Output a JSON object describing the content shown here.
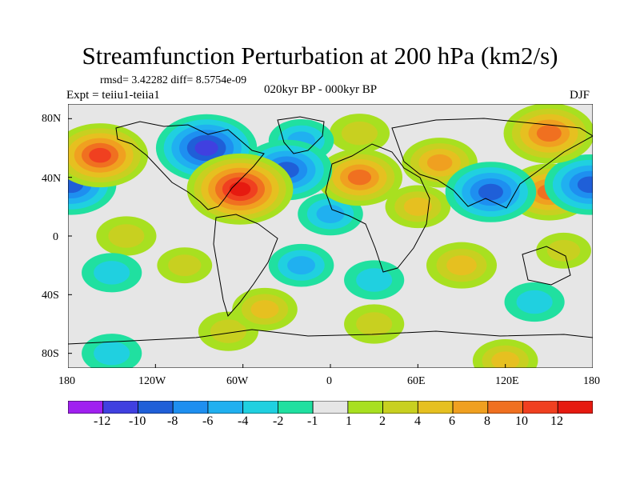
{
  "title": "Streamfunction Perturbation at 200 hPa (km2/s)",
  "stats": "rmsd= 3.42282 diff= 8.5754e-09",
  "experiment": "Expt = teiiu1-teiia1",
  "period": "020kyr BP - 000kyr BP",
  "season": "DJF",
  "axes": {
    "lat_labels": [
      "80N",
      "40N",
      "0",
      "40S",
      "80S"
    ],
    "lon_labels": [
      "180",
      "120W",
      "60W",
      "0",
      "60E",
      "120E",
      "180"
    ]
  },
  "colorbar": {
    "labels": [
      "-12",
      "-10",
      "-8",
      "-6",
      "-4",
      "-2",
      "-1",
      "1",
      "2",
      "4",
      "6",
      "8",
      "10",
      "12"
    ],
    "colors": [
      "#a020f0",
      "#4040e0",
      "#1f5fd8",
      "#1e8ff0",
      "#20b0f0",
      "#20d0e0",
      "#20e0a0",
      "#e6e6e6",
      "#a8e020",
      "#c8d020",
      "#e6c020",
      "#f0a020",
      "#f07020",
      "#f04020",
      "#e61a10"
    ]
  },
  "chart_data": {
    "type": "heatmap",
    "title": "Streamfunction Perturbation at 200 hPa (km2/s)",
    "lon_range": [
      -180,
      180
    ],
    "lat_range": [
      -90,
      90
    ],
    "levels": [
      -12,
      -10,
      -8,
      -6,
      -4,
      -2,
      -1,
      1,
      2,
      4,
      6,
      8,
      10,
      12
    ],
    "features": [
      {
        "lon": -158,
        "lat": 55,
        "value": 10
      },
      {
        "lon": -178,
        "lat": 35,
        "value": -9
      },
      {
        "lon": 178,
        "lat": 35,
        "value": -9
      },
      {
        "lon": -85,
        "lat": 60,
        "value": -11
      },
      {
        "lon": -30,
        "lat": 45,
        "value": -9
      },
      {
        "lon": -20,
        "lat": 65,
        "value": -4
      },
      {
        "lon": -62,
        "lat": 32,
        "value": 12
      },
      {
        "lon": -45,
        "lat": -50,
        "value": 4
      },
      {
        "lon": 20,
        "lat": 40,
        "value": 8
      },
      {
        "lon": 75,
        "lat": 50,
        "value": 6
      },
      {
        "lon": 110,
        "lat": 30,
        "value": -9
      },
      {
        "lon": 150,
        "lat": 30,
        "value": 8
      },
      {
        "lon": 150,
        "lat": 70,
        "value": 9
      },
      {
        "lon": 60,
        "lat": 20,
        "value": 4
      },
      {
        "lon": 90,
        "lat": -20,
        "value": 5
      },
      {
        "lon": 0,
        "lat": 15,
        "value": -4
      },
      {
        "lon": -20,
        "lat": -20,
        "value": -4
      },
      {
        "lon": 30,
        "lat": -30,
        "value": -3
      },
      {
        "lon": -140,
        "lat": 0,
        "value": 3
      },
      {
        "lon": -100,
        "lat": -20,
        "value": 2
      },
      {
        "lon": -150,
        "lat": -25,
        "value": -3
      },
      {
        "lon": -70,
        "lat": -65,
        "value": 3
      },
      {
        "lon": 140,
        "lat": -45,
        "value": -3
      },
      {
        "lon": 30,
        "lat": -60,
        "value": 3
      },
      {
        "lon": -150,
        "lat": -80,
        "value": -3
      },
      {
        "lon": 120,
        "lat": -85,
        "value": 4
      },
      {
        "lon": 160,
        "lat": -10,
        "value": 2
      },
      {
        "lon": 20,
        "lat": 70,
        "value": 3
      }
    ]
  }
}
